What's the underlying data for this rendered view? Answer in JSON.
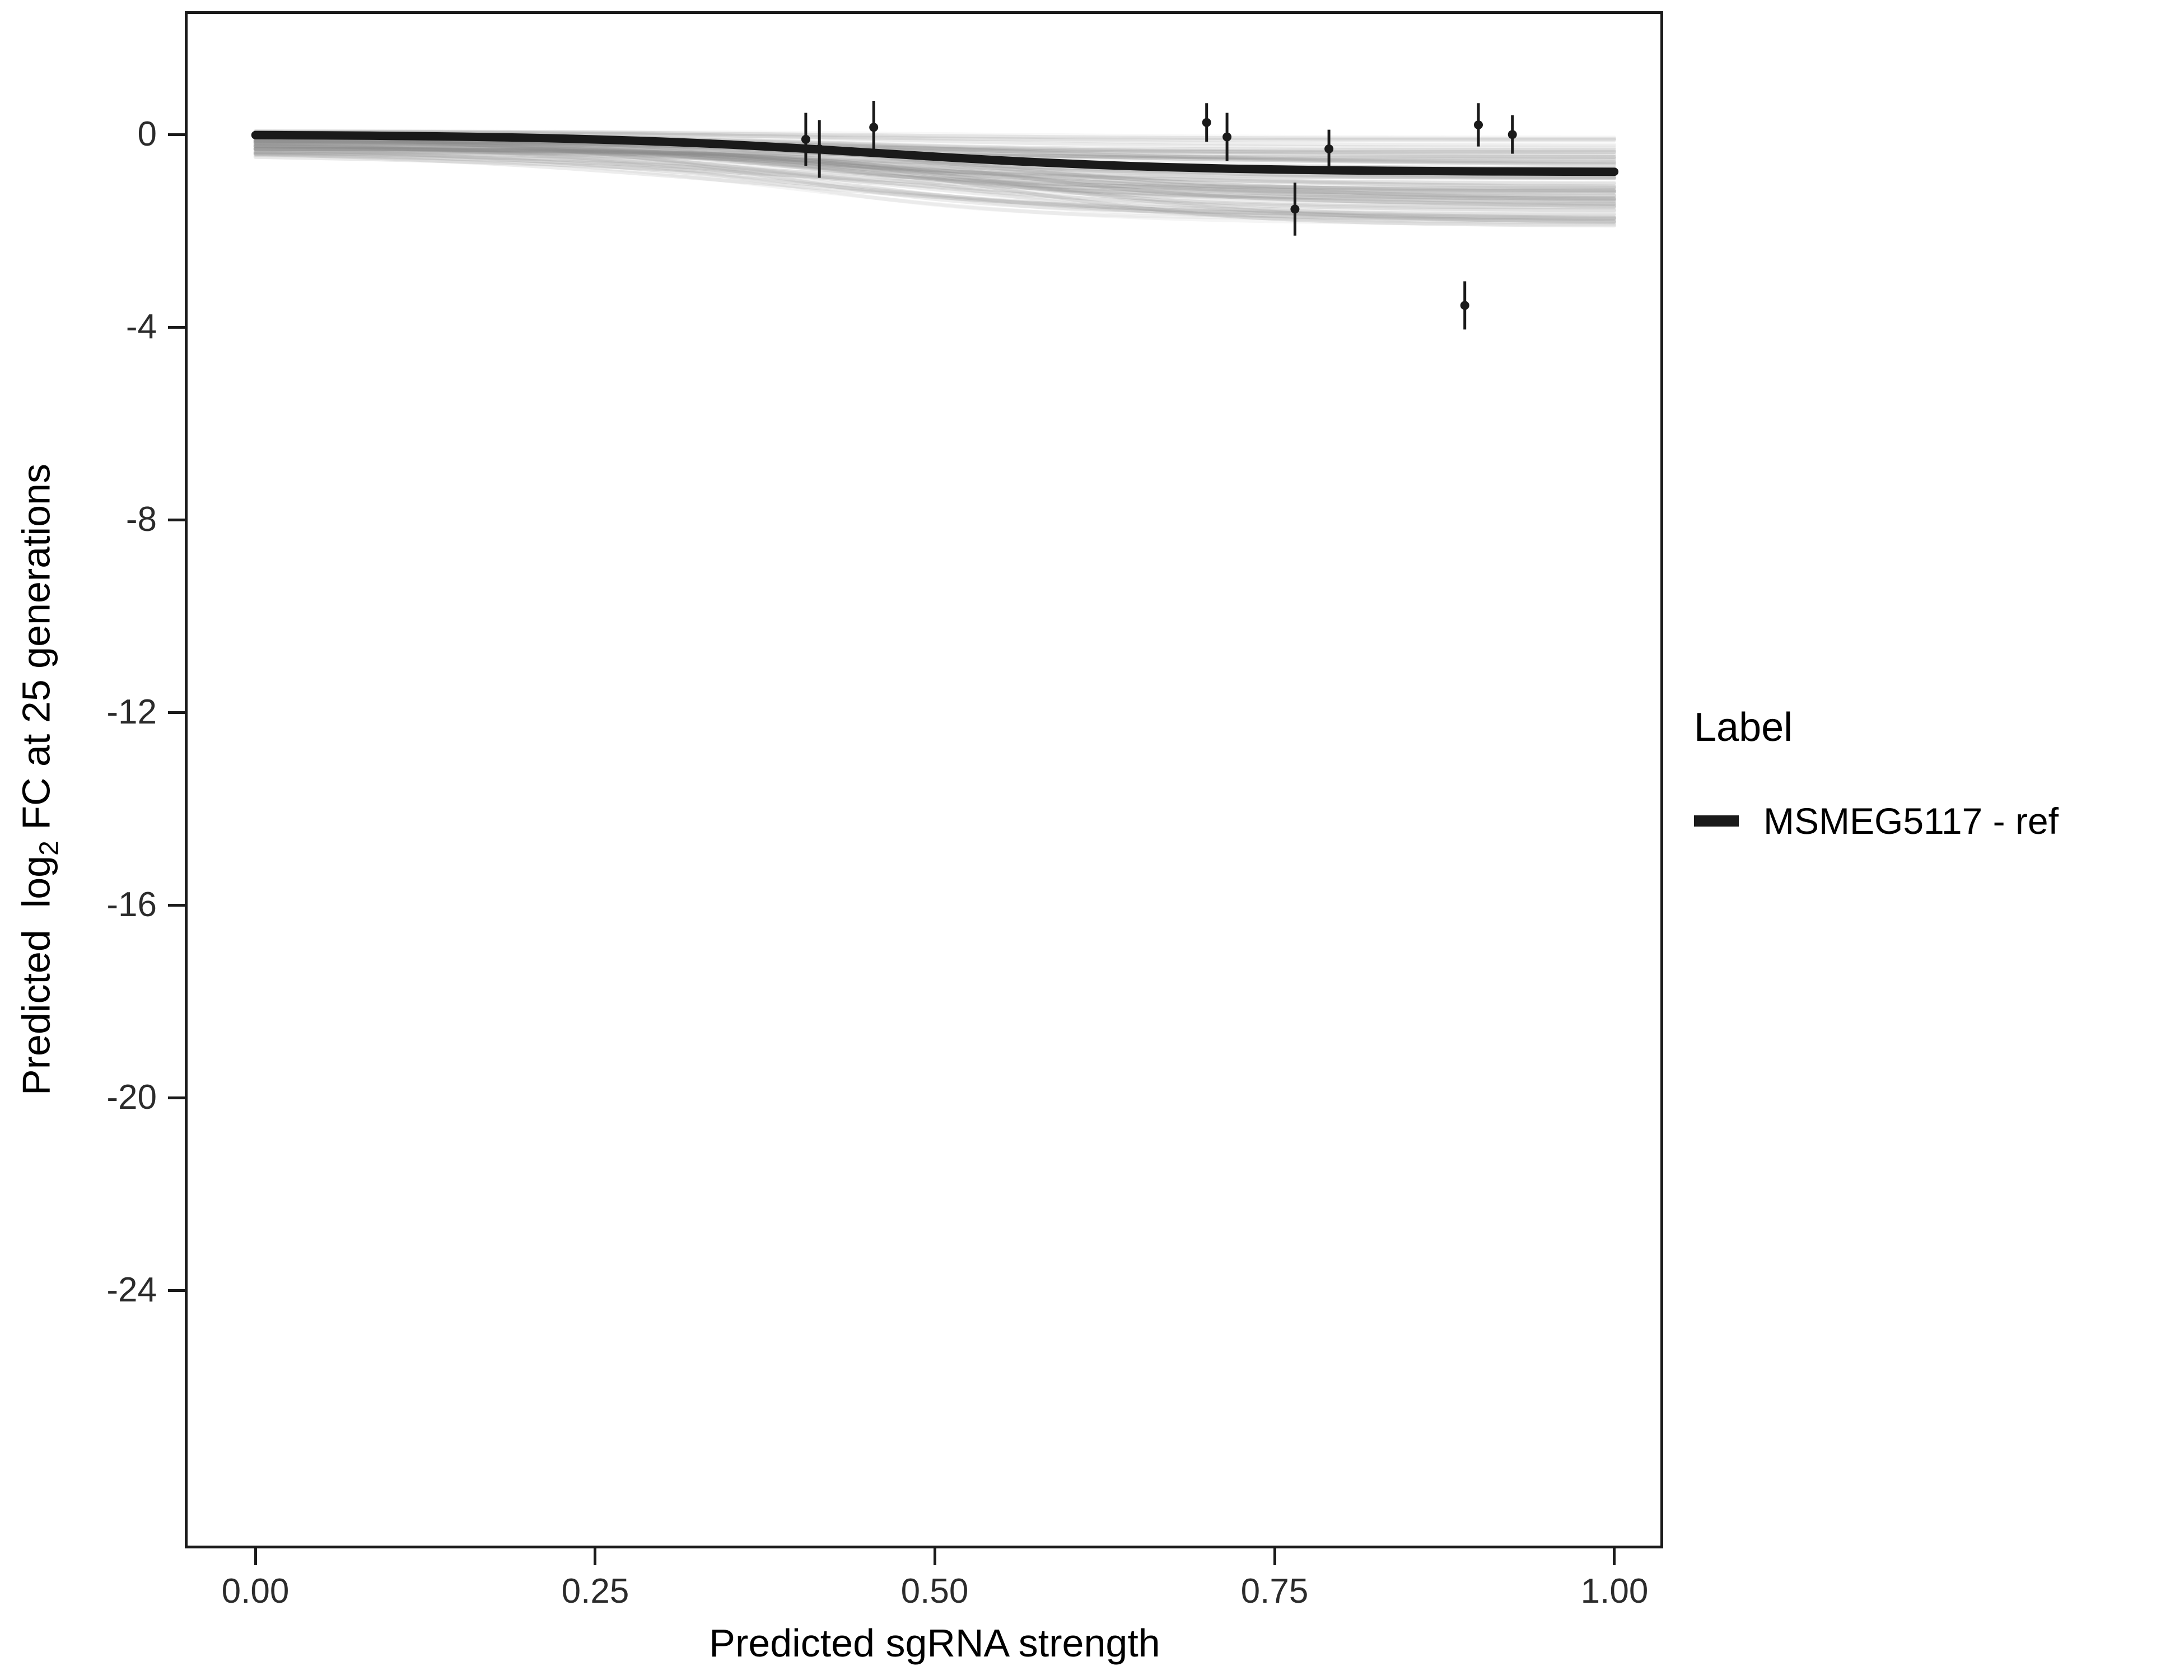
{
  "chart_data": {
    "type": "line",
    "title": "",
    "xlabel": "Predicted sgRNA strength",
    "ylabel": "Predicted log2 FC at 25 generations",
    "ylabel_parts": {
      "pre": "Predicted  log",
      "sub": "2",
      "post": " FC at 25 generations"
    },
    "xlim": [
      -0.052,
      1.036
    ],
    "ylim": [
      -29.36,
      2.56
    ],
    "grid": false,
    "legend_position": "right",
    "panel_border_color": "#1a1a1a",
    "axis_text_color": "#2b2b2b",
    "x_ticks": [
      {
        "value": 0.0,
        "label": "0.00"
      },
      {
        "value": 0.25,
        "label": "0.25"
      },
      {
        "value": 0.5,
        "label": "0.50"
      },
      {
        "value": 0.75,
        "label": "0.75"
      },
      {
        "value": 1.0,
        "label": "1.00"
      }
    ],
    "y_ticks": [
      {
        "value": 0,
        "label": "0"
      },
      {
        "value": -4,
        "label": "-4"
      },
      {
        "value": -8,
        "label": "-8"
      },
      {
        "value": -12,
        "label": "-12"
      },
      {
        "value": -16,
        "label": "-16"
      },
      {
        "value": -20,
        "label": "-20"
      },
      {
        "value": -24,
        "label": "-24"
      }
    ],
    "main_curve": {
      "name": "MSMEG5117 - ref",
      "color": "#1a1a1a",
      "stroke_width": 15,
      "params": {
        "c": 0.0,
        "L": 0.78,
        "x0": 0.46,
        "k": 9
      }
    },
    "band": {
      "description": "posterior draw curves",
      "color": "#8a8a8a",
      "stroke_width": 7,
      "count": 80,
      "seed": 7,
      "c_range": [
        -0.38,
        0.08
      ],
      "L_range": [
        0.1,
        1.7
      ],
      "x0_range": [
        0.36,
        0.56
      ],
      "k_range": [
        5,
        13
      ],
      "opacity_range": [
        0.05,
        0.2
      ],
      "floor": -1.9
    },
    "point_color": "#1a1a1a",
    "point_radius": 8,
    "errorbar_stroke_width": 5,
    "points": [
      {
        "x": 0.405,
        "y": -0.1,
        "err": 0.55
      },
      {
        "x": 0.415,
        "y": -0.3,
        "err": 0.6
      },
      {
        "x": 0.455,
        "y": 0.15,
        "err": 0.55
      },
      {
        "x": 0.7,
        "y": 0.25,
        "err": 0.4
      },
      {
        "x": 0.715,
        "y": -0.05,
        "err": 0.5
      },
      {
        "x": 0.765,
        "y": -1.55,
        "err": 0.55
      },
      {
        "x": 0.79,
        "y": -0.3,
        "err": 0.4
      },
      {
        "x": 0.89,
        "y": -3.55,
        "err": 0.5
      },
      {
        "x": 0.9,
        "y": 0.2,
        "err": 0.45
      },
      {
        "x": 0.925,
        "y": 0.0,
        "err": 0.4
      }
    ]
  },
  "legend": {
    "title": "Label",
    "entries": [
      {
        "label": "MSMEG5117 - ref",
        "color": "#1a1a1a"
      }
    ]
  }
}
